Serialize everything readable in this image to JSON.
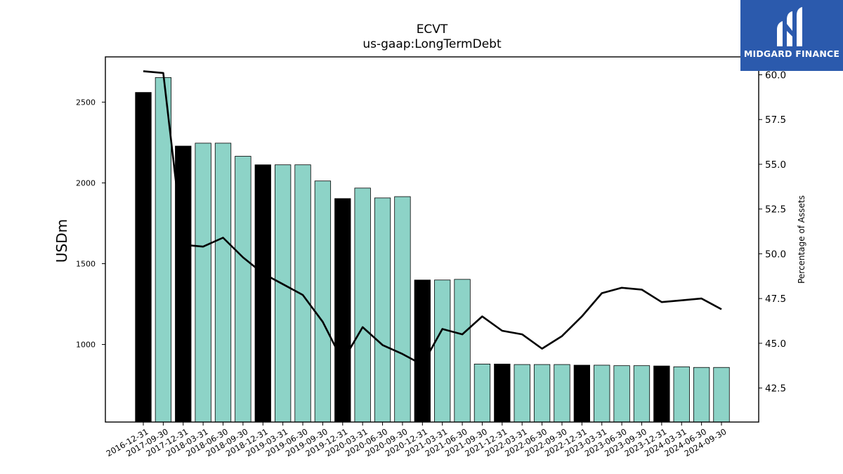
{
  "chart_data": {
    "type": "bar",
    "title": "ECVT",
    "subtitle": "us-gaap:LongTermDebt",
    "ylabel": "USDm",
    "y2label": "Percentage of Assets",
    "ylim": [
      520,
      2780
    ],
    "y2lim": [
      40.6,
      61.0
    ],
    "yticks": [
      1000,
      1500,
      2000,
      2500
    ],
    "y2ticks": [
      "42.5",
      "45.0",
      "47.5",
      "50.0",
      "52.5",
      "55.0",
      "57.5",
      "60.0"
    ],
    "categories": [
      "2016-12-31",
      "2017-09-30",
      "2017-12-31",
      "2018-03-31",
      "2018-06-30",
      "2018-09-30",
      "2018-12-31",
      "2019-03-31",
      "2019-06-30",
      "2019-09-30",
      "2019-12-31",
      "2020-03-31",
      "2020-06-30",
      "2020-09-30",
      "2020-12-31",
      "2021-03-31",
      "2021-06-30",
      "2021-09-30",
      "2021-12-31",
      "2022-03-31",
      "2022-06-30",
      "2022-09-30",
      "2022-12-31",
      "2023-03-31",
      "2023-06-30",
      "2023-09-30",
      "2023-12-31",
      "2024-03-31",
      "2024-06-30",
      "2024-09-30"
    ],
    "series": [
      {
        "values": [
          2560,
          2652,
          2228,
          2246,
          2246,
          2165,
          2112,
          2112,
          2112,
          2012,
          1903,
          1968,
          1907,
          1915,
          1399,
          1399,
          1403,
          879,
          879,
          876,
          876,
          876,
          872,
          872,
          869,
          869,
          867,
          862,
          858,
          858
        ],
        "year_end": [
          true,
          false,
          true,
          false,
          false,
          false,
          true,
          false,
          false,
          false,
          true,
          false,
          false,
          false,
          true,
          false,
          false,
          false,
          true,
          false,
          false,
          false,
          true,
          false,
          false,
          false,
          true,
          false,
          false,
          false
        ]
      },
      {
        "values": [
          60.2,
          60.1,
          50.5,
          50.4,
          50.9,
          49.8,
          48.9,
          48.3,
          47.7,
          46.2,
          44.0,
          45.9,
          44.9,
          44.4,
          43.8,
          45.8,
          45.5,
          46.5,
          45.7,
          45.5,
          44.7,
          45.4,
          46.5,
          47.8,
          48.1,
          48.0,
          47.3,
          47.4,
          47.5,
          46.9
        ]
      }
    ],
    "colors": {
      "year_end_bar": "#000000",
      "quarter_bar": "#8dd3c7",
      "line": "#000000"
    },
    "legend": "none",
    "grid": false
  },
  "logo": {
    "text": "MIDGARD FINANCE",
    "background": "#2b5aad"
  }
}
